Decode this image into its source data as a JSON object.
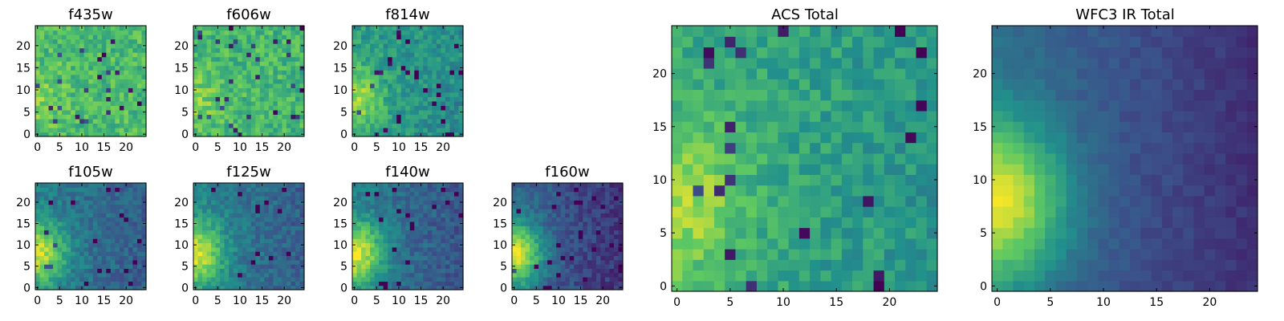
{
  "figure": {
    "cmap_stops": [
      "#440154",
      "#3b528b",
      "#21918c",
      "#5ec962",
      "#fde725"
    ]
  },
  "chart_data": [
    {
      "type": "heatmap",
      "title": "f435w",
      "grid": [
        25,
        25
      ],
      "x_ticks": [
        0,
        5,
        10,
        15,
        20
      ],
      "y_ticks": [
        0,
        5,
        10,
        15,
        20
      ],
      "xlim": [
        -0.5,
        24.5
      ],
      "ylim": [
        -0.5,
        24.5
      ],
      "value_range": [
        0,
        1
      ],
      "pattern": {
        "base": 0.68,
        "blob": 0.1,
        "slope": 0.0,
        "noise": 0.26,
        "spikes": 0.04
      }
    },
    {
      "type": "heatmap",
      "title": "f606w",
      "grid": [
        25,
        25
      ],
      "x_ticks": [
        0,
        5,
        10,
        15,
        20
      ],
      "y_ticks": [
        0,
        5,
        10,
        15,
        20
      ],
      "xlim": [
        -0.5,
        24.5
      ],
      "ylim": [
        -0.5,
        24.5
      ],
      "value_range": [
        0,
        1
      ],
      "pattern": {
        "base": 0.66,
        "blob": 0.14,
        "slope": 0.0,
        "noise": 0.26,
        "spikes": 0.04
      }
    },
    {
      "type": "heatmap",
      "title": "f814w",
      "grid": [
        25,
        25
      ],
      "x_ticks": [
        0,
        5,
        10,
        15,
        20
      ],
      "y_ticks": [
        0,
        5,
        10,
        15,
        20
      ],
      "xlim": [
        -0.5,
        24.5
      ],
      "ylim": [
        -0.5,
        24.5
      ],
      "value_range": [
        0,
        1
      ],
      "pattern": {
        "base": 0.56,
        "blob": 0.3,
        "slope": 0.1,
        "noise": 0.22,
        "spikes": 0.04
      }
    },
    {
      "type": "heatmap",
      "title": "f105w",
      "grid": [
        25,
        25
      ],
      "x_ticks": [
        0,
        5,
        10,
        15,
        20
      ],
      "y_ticks": [
        0,
        5,
        10,
        15,
        20
      ],
      "xlim": [
        -0.5,
        24.5
      ],
      "ylim": [
        -0.5,
        24.5
      ],
      "value_range": [
        0,
        1
      ],
      "pattern": {
        "base": 0.42,
        "blob": 0.5,
        "slope": 0.14,
        "noise": 0.18,
        "spikes": 0.03
      }
    },
    {
      "type": "heatmap",
      "title": "f125w",
      "grid": [
        25,
        25
      ],
      "x_ticks": [
        0,
        5,
        10,
        15,
        20
      ],
      "y_ticks": [
        0,
        5,
        10,
        15,
        20
      ],
      "xlim": [
        -0.5,
        24.5
      ],
      "ylim": [
        -0.5,
        24.5
      ],
      "value_range": [
        0,
        1
      ],
      "pattern": {
        "base": 0.44,
        "blob": 0.5,
        "slope": 0.16,
        "noise": 0.18,
        "spikes": 0.03
      }
    },
    {
      "type": "heatmap",
      "title": "f140w",
      "grid": [
        25,
        25
      ],
      "x_ticks": [
        0,
        5,
        10,
        15,
        20
      ],
      "y_ticks": [
        0,
        5,
        10,
        15,
        20
      ],
      "xlim": [
        -0.5,
        24.5
      ],
      "ylim": [
        -0.5,
        24.5
      ],
      "value_range": [
        0,
        1
      ],
      "pattern": {
        "base": 0.42,
        "blob": 0.55,
        "slope": 0.18,
        "noise": 0.18,
        "spikes": 0.03
      }
    },
    {
      "type": "heatmap",
      "title": "f160w",
      "grid": [
        25,
        25
      ],
      "x_ticks": [
        0,
        5,
        10,
        15,
        20
      ],
      "y_ticks": [
        0,
        5,
        10,
        15,
        20
      ],
      "xlim": [
        -0.5,
        24.5
      ],
      "ylim": [
        -0.5,
        24.5
      ],
      "value_range": [
        0,
        1
      ],
      "pattern": {
        "base": 0.34,
        "blob": 0.62,
        "slope": 0.22,
        "noise": 0.16,
        "spikes": 0.03
      }
    },
    {
      "type": "heatmap",
      "title": "ACS Total",
      "grid": [
        25,
        25
      ],
      "x_ticks": [
        0,
        5,
        10,
        15,
        20
      ],
      "y_ticks": [
        0,
        5,
        10,
        15,
        20
      ],
      "xlim": [
        -0.5,
        24.5
      ],
      "ylim": [
        -0.5,
        24.5
      ],
      "value_range": [
        0,
        1
      ],
      "pattern": {
        "base": 0.62,
        "blob": 0.26,
        "slope": 0.12,
        "noise": 0.2,
        "spikes": 0.03
      }
    },
    {
      "type": "heatmap",
      "title": "WFC3 IR Total",
      "grid": [
        25,
        25
      ],
      "x_ticks": [
        0,
        5,
        10,
        15,
        20
      ],
      "y_ticks": [
        0,
        5,
        10,
        15,
        20
      ],
      "xlim": [
        -0.5,
        24.5
      ],
      "ylim": [
        -0.5,
        24.5
      ],
      "value_range": [
        0,
        1
      ],
      "pattern": {
        "base": 0.36,
        "blob": 0.62,
        "slope": 0.25,
        "noise": 0.07,
        "spikes": 0.0
      }
    }
  ]
}
